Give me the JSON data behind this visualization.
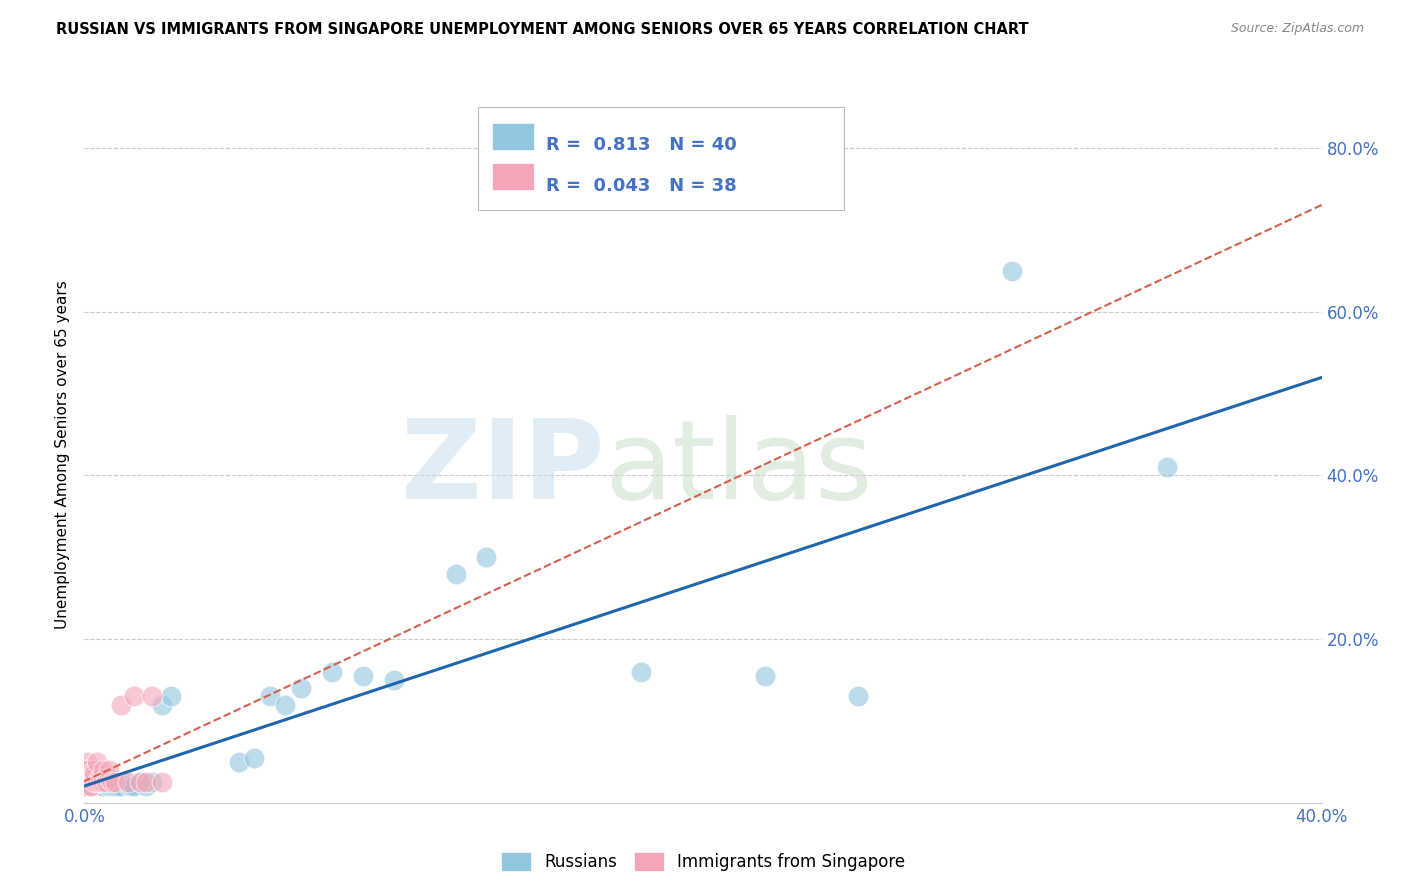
{
  "title": "RUSSIAN VS IMMIGRANTS FROM SINGAPORE UNEMPLOYMENT AMONG SENIORS OVER 65 YEARS CORRELATION CHART",
  "source": "Source: ZipAtlas.com",
  "ylabel": "Unemployment Among Seniors over 65 years",
  "legend_bottom": [
    "Russians",
    "Immigrants from Singapore"
  ],
  "r_russian": 0.813,
  "n_russian": 40,
  "r_singapore": 0.043,
  "n_singapore": 38,
  "blue_color": "#92c5de",
  "pink_color": "#f4a6b8",
  "blue_line_color": "#2166ac",
  "pink_line_color": "#d6604d",
  "russian_x": [
    0.001,
    0.001,
    0.002,
    0.002,
    0.003,
    0.003,
    0.004,
    0.005,
    0.005,
    0.006,
    0.007,
    0.008,
    0.009,
    0.01,
    0.011,
    0.012,
    0.013,
    0.014,
    0.015,
    0.016,
    0.018,
    0.02,
    0.022,
    0.025,
    0.028,
    0.05,
    0.055,
    0.06,
    0.065,
    0.07,
    0.08,
    0.09,
    0.1,
    0.12,
    0.13,
    0.18,
    0.22,
    0.25,
    0.3,
    0.35
  ],
  "russian_y": [
    0.02,
    0.025,
    0.02,
    0.022,
    0.02,
    0.025,
    0.02,
    0.02,
    0.022,
    0.02,
    0.022,
    0.02,
    0.02,
    0.02,
    0.02,
    0.02,
    0.025,
    0.022,
    0.02,
    0.02,
    0.025,
    0.02,
    0.025,
    0.12,
    0.13,
    0.05,
    0.055,
    0.13,
    0.12,
    0.14,
    0.16,
    0.155,
    0.15,
    0.28,
    0.3,
    0.16,
    0.155,
    0.13,
    0.65,
    0.41
  ],
  "singapore_x": [
    0.0,
    0.0,
    0.0,
    0.0,
    0.0,
    0.001,
    0.001,
    0.001,
    0.001,
    0.001,
    0.001,
    0.002,
    0.002,
    0.002,
    0.002,
    0.003,
    0.003,
    0.003,
    0.003,
    0.004,
    0.004,
    0.005,
    0.005,
    0.006,
    0.006,
    0.007,
    0.007,
    0.008,
    0.008,
    0.009,
    0.01,
    0.012,
    0.014,
    0.016,
    0.018,
    0.02,
    0.022,
    0.025
  ],
  "singapore_y": [
    0.02,
    0.025,
    0.02,
    0.025,
    0.02,
    0.05,
    0.04,
    0.03,
    0.035,
    0.04,
    0.025,
    0.03,
    0.02,
    0.035,
    0.02,
    0.04,
    0.03,
    0.025,
    0.035,
    0.05,
    0.025,
    0.03,
    0.025,
    0.04,
    0.025,
    0.03,
    0.025,
    0.03,
    0.04,
    0.025,
    0.025,
    0.12,
    0.025,
    0.13,
    0.025,
    0.025,
    0.13,
    0.025
  ],
  "xlim": [
    0.0,
    0.4
  ],
  "ylim": [
    0.0,
    0.85
  ],
  "xticks": [
    0.0,
    0.1,
    0.2,
    0.3,
    0.4
  ],
  "yticks": [
    0.0,
    0.2,
    0.4,
    0.6,
    0.8
  ],
  "grid_yticks": [
    0.2,
    0.4,
    0.6,
    0.8
  ],
  "tick_color": "#4472c4",
  "bg_color": "#ffffff",
  "grid_color": "#cccccc"
}
